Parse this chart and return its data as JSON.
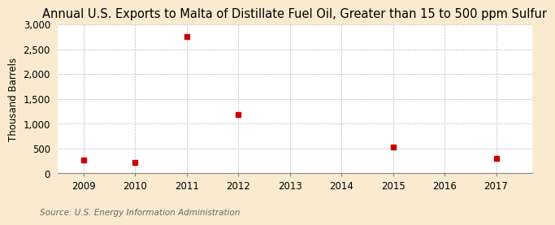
{
  "title": "Annual U.S. Exports to Malta of Distillate Fuel Oil, Greater than 15 to 500 ppm Sulfur",
  "ylabel": "Thousand Barrels",
  "source": "Source: U.S. Energy Information Administration",
  "background_color": "#faebd0",
  "plot_background_color": "#ffffff",
  "x_years": [
    2009,
    2010,
    2011,
    2012,
    2013,
    2014,
    2015,
    2016,
    2017
  ],
  "data_x": [
    2009,
    2010,
    2011,
    2012,
    2015,
    2017
  ],
  "data_y": [
    270,
    220,
    2760,
    1190,
    530,
    300
  ],
  "marker_color": "#cc0000",
  "marker_size": 5,
  "ylim": [
    0,
    3000
  ],
  "yticks": [
    0,
    500,
    1000,
    1500,
    2000,
    2500,
    3000
  ],
  "xlim": [
    2008.5,
    2017.7
  ],
  "grid_color": "#bbbbbb",
  "title_fontsize": 10.5,
  "label_fontsize": 8.5,
  "tick_fontsize": 8.5,
  "source_fontsize": 7.5
}
